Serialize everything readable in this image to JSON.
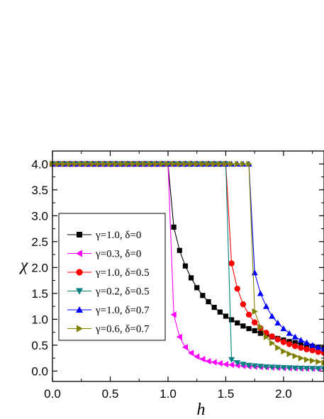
{
  "chart_data": {
    "type": "line",
    "title": "",
    "xlabel": "h",
    "ylabel": "χ",
    "xlim": [
      0,
      2.35
    ],
    "ylim": [
      -0.2,
      4.25
    ],
    "x_ticks": [
      0.0,
      0.5,
      1.0,
      1.5,
      2.0
    ],
    "x_tick_labels": [
      "0.0",
      "0.5",
      "1.0",
      "1.5",
      "2.0"
    ],
    "y_ticks": [
      0.0,
      0.5,
      1.0,
      1.5,
      2.0,
      2.5,
      3.0,
      3.5,
      4.0
    ],
    "y_tick_labels": [
      "0.0",
      "0.5",
      "1.0",
      "1.5",
      "2.0",
      "2.5",
      "3.0",
      "3.5",
      "4.0"
    ],
    "grid": false,
    "legend_position": "left",
    "series": [
      {
        "name": "γ=1.0, δ=0",
        "color": "#000000",
        "marker": "square",
        "x": [
          0.0,
          0.05,
          0.1,
          0.15,
          0.2,
          0.25,
          0.3,
          0.35,
          0.4,
          0.45,
          0.5,
          0.55,
          0.6,
          0.65,
          0.7,
          0.75,
          0.8,
          0.85,
          0.9,
          0.95,
          1.0,
          1.05,
          1.1,
          1.15,
          1.2,
          1.25,
          1.3,
          1.35,
          1.4,
          1.45,
          1.5,
          1.55,
          1.6,
          1.65,
          1.7,
          1.75,
          1.8,
          1.85,
          1.9,
          1.95,
          2.0,
          2.05,
          2.1,
          2.15,
          2.2,
          2.25,
          2.3,
          2.35
        ],
        "y": [
          4.0,
          4.0,
          4.0,
          4.0,
          4.0,
          4.0,
          4.0,
          4.0,
          4.0,
          4.0,
          4.0,
          4.0,
          4.0,
          4.0,
          4.0,
          4.0,
          4.0,
          4.0,
          4.0,
          4.0,
          4.0,
          2.78,
          2.33,
          2.03,
          1.8,
          1.61,
          1.46,
          1.34,
          1.23,
          1.14,
          1.06,
          0.99,
          0.93,
          0.87,
          0.82,
          0.78,
          0.73,
          0.7,
          0.66,
          0.63,
          0.6,
          0.57,
          0.55,
          0.52,
          0.5,
          0.48,
          0.46,
          0.44
        ]
      },
      {
        "name": "γ=0.3, δ=0",
        "color": "#ff00ff",
        "marker": "triangle-left",
        "x": [
          0.0,
          0.05,
          0.1,
          0.15,
          0.2,
          0.25,
          0.3,
          0.35,
          0.4,
          0.45,
          0.5,
          0.55,
          0.6,
          0.65,
          0.7,
          0.75,
          0.8,
          0.85,
          0.9,
          0.95,
          1.0,
          1.05,
          1.1,
          1.15,
          1.2,
          1.25,
          1.3,
          1.35,
          1.4,
          1.45,
          1.5,
          1.55,
          1.6,
          1.65,
          1.7,
          1.75,
          1.8,
          1.85,
          1.9,
          1.95,
          2.0,
          2.05,
          2.1,
          2.15,
          2.2,
          2.25,
          2.3,
          2.35
        ],
        "y": [
          4.0,
          4.0,
          4.0,
          4.0,
          4.0,
          4.0,
          4.0,
          4.0,
          4.0,
          4.0,
          4.0,
          4.0,
          4.0,
          4.0,
          4.0,
          4.0,
          4.0,
          4.0,
          4.0,
          4.0,
          4.0,
          1.09,
          0.66,
          0.46,
          0.35,
          0.28,
          0.23,
          0.19,
          0.17,
          0.15,
          0.13,
          0.12,
          0.11,
          0.1,
          0.09,
          0.085,
          0.08,
          0.075,
          0.07,
          0.065,
          0.06,
          0.058,
          0.055,
          0.052,
          0.05,
          0.048,
          0.046,
          0.044
        ]
      },
      {
        "name": "γ=1.0, δ=0.5",
        "color": "#ff0000",
        "marker": "circle",
        "x": [
          0.0,
          0.05,
          0.1,
          0.15,
          0.2,
          0.25,
          0.3,
          0.35,
          0.4,
          0.45,
          0.5,
          0.55,
          0.6,
          0.65,
          0.7,
          0.75,
          0.8,
          0.85,
          0.9,
          0.95,
          1.0,
          1.05,
          1.1,
          1.15,
          1.2,
          1.25,
          1.3,
          1.35,
          1.4,
          1.45,
          1.5,
          1.55,
          1.6,
          1.65,
          1.7,
          1.75,
          1.8,
          1.85,
          1.9,
          1.95,
          2.0,
          2.05,
          2.1,
          2.15,
          2.2,
          2.25,
          2.3,
          2.35
        ],
        "y": [
          4.0,
          4.0,
          4.0,
          4.0,
          4.0,
          4.0,
          4.0,
          4.0,
          4.0,
          4.0,
          4.0,
          4.0,
          4.0,
          4.0,
          4.0,
          4.0,
          4.0,
          4.0,
          4.0,
          4.0,
          4.0,
          4.0,
          4.0,
          4.0,
          4.0,
          4.0,
          4.0,
          4.0,
          4.0,
          4.0,
          4.0,
          2.08,
          1.59,
          1.29,
          1.09,
          0.94,
          0.83,
          0.74,
          0.67,
          0.61,
          0.56,
          0.52,
          0.48,
          0.45,
          0.42,
          0.4,
          0.37,
          0.35
        ]
      },
      {
        "name": "γ=0.2, δ=0.5",
        "color": "#008080",
        "marker": "triangle-down",
        "x": [
          0.0,
          0.05,
          0.1,
          0.15,
          0.2,
          0.25,
          0.3,
          0.35,
          0.4,
          0.45,
          0.5,
          0.55,
          0.6,
          0.65,
          0.7,
          0.75,
          0.8,
          0.85,
          0.9,
          0.95,
          1.0,
          1.05,
          1.1,
          1.15,
          1.2,
          1.25,
          1.3,
          1.35,
          1.4,
          1.45,
          1.5,
          1.55,
          1.6,
          1.65,
          1.7,
          1.75,
          1.8,
          1.85,
          1.9,
          1.95,
          2.0,
          2.05,
          2.1,
          2.15,
          2.2,
          2.25,
          2.3,
          2.35
        ],
        "y": [
          4.0,
          4.0,
          4.0,
          4.0,
          4.0,
          4.0,
          4.0,
          4.0,
          4.0,
          4.0,
          4.0,
          4.0,
          4.0,
          4.0,
          4.0,
          4.0,
          4.0,
          4.0,
          4.0,
          4.0,
          4.0,
          4.0,
          4.0,
          4.0,
          4.0,
          4.0,
          4.0,
          4.0,
          4.0,
          4.0,
          4.0,
          0.22,
          0.16,
          0.13,
          0.11,
          0.1,
          0.09,
          0.08,
          0.075,
          0.07,
          0.065,
          0.06,
          0.057,
          0.054,
          0.051,
          0.049,
          0.047,
          0.045
        ]
      },
      {
        "name": "γ=1.0, δ=0.7",
        "color": "#0000ff",
        "marker": "triangle-up",
        "x": [
          0.0,
          0.05,
          0.1,
          0.15,
          0.2,
          0.25,
          0.3,
          0.35,
          0.4,
          0.45,
          0.5,
          0.55,
          0.6,
          0.65,
          0.7,
          0.75,
          0.8,
          0.85,
          0.9,
          0.95,
          1.0,
          1.05,
          1.1,
          1.15,
          1.2,
          1.25,
          1.3,
          1.35,
          1.4,
          1.45,
          1.5,
          1.55,
          1.6,
          1.65,
          1.7,
          1.75,
          1.8,
          1.85,
          1.9,
          1.95,
          2.0,
          2.05,
          2.1,
          2.15,
          2.2,
          2.25,
          2.3,
          2.35
        ],
        "y": [
          4.0,
          4.0,
          4.0,
          4.0,
          4.0,
          4.0,
          4.0,
          4.0,
          4.0,
          4.0,
          4.0,
          4.0,
          4.0,
          4.0,
          4.0,
          4.0,
          4.0,
          4.0,
          4.0,
          4.0,
          4.0,
          4.0,
          4.0,
          4.0,
          4.0,
          4.0,
          4.0,
          4.0,
          4.0,
          4.0,
          4.0,
          4.0,
          4.0,
          4.0,
          4.0,
          1.9,
          1.5,
          1.25,
          1.06,
          0.93,
          0.82,
          0.73,
          0.66,
          0.6,
          0.55,
          0.5,
          0.46,
          0.43
        ]
      },
      {
        "name": "γ=0.6, δ=0.7",
        "color": "#808000",
        "marker": "triangle-right",
        "x": [
          0.0,
          0.05,
          0.1,
          0.15,
          0.2,
          0.25,
          0.3,
          0.35,
          0.4,
          0.45,
          0.5,
          0.55,
          0.6,
          0.65,
          0.7,
          0.75,
          0.8,
          0.85,
          0.9,
          0.95,
          1.0,
          1.05,
          1.1,
          1.15,
          1.2,
          1.25,
          1.3,
          1.35,
          1.4,
          1.45,
          1.5,
          1.55,
          1.6,
          1.65,
          1.7,
          1.75,
          1.8,
          1.85,
          1.9,
          1.95,
          2.0,
          2.05,
          2.1,
          2.15,
          2.2,
          2.25,
          2.3,
          2.35
        ],
        "y": [
          4.0,
          4.0,
          4.0,
          4.0,
          4.0,
          4.0,
          4.0,
          4.0,
          4.0,
          4.0,
          4.0,
          4.0,
          4.0,
          4.0,
          4.0,
          4.0,
          4.0,
          4.0,
          4.0,
          4.0,
          4.0,
          4.0,
          4.0,
          4.0,
          4.0,
          4.0,
          4.0,
          4.0,
          4.0,
          4.0,
          4.0,
          4.0,
          4.0,
          4.0,
          4.0,
          1.15,
          0.85,
          0.66,
          0.54,
          0.45,
          0.38,
          0.33,
          0.29,
          0.25,
          0.22,
          0.2,
          0.18,
          0.16
        ]
      }
    ]
  }
}
